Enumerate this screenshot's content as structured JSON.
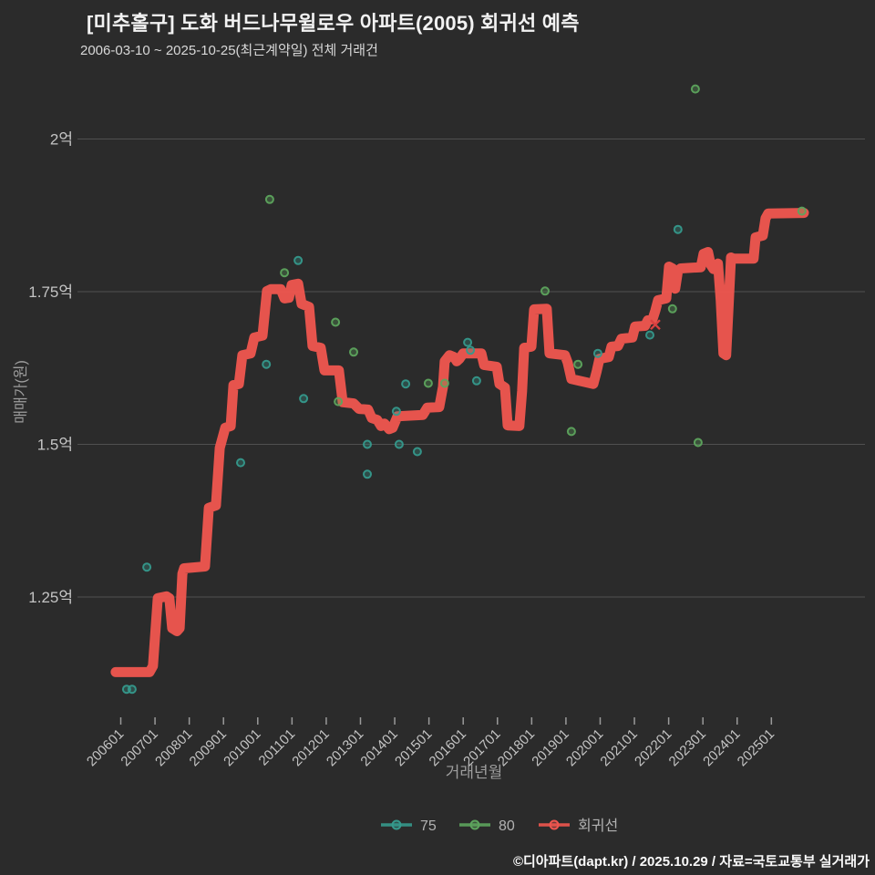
{
  "header": {
    "title": "[미추홀구] 도화 버드나무윌로우 아파트(2005) 회귀선 예측",
    "subtitle": "2006-03-10 ~ 2025-10-25(최근계약일) 전체 거래건"
  },
  "footer": {
    "credit": "©디아파트(dapt.kr) / 2025.10.29 / 자료=국토교통부 실거래가"
  },
  "colors": {
    "background": "#2b2b2b",
    "grid": "#505050",
    "tick_mark": "#9a9a9a",
    "tick_label": "#c4c4c4",
    "axis_title": "#9e9e9e",
    "legend_label": "#b2b2b2",
    "red": "#f0564f",
    "teal": "#35998c",
    "green": "#5da45d",
    "marker_x_red": "#d94040"
  },
  "legend": {
    "items": [
      {
        "label": "75",
        "color_key": "teal"
      },
      {
        "label": "80",
        "color_key": "green"
      },
      {
        "label": "회귀선",
        "color_key": "red"
      }
    ]
  },
  "chart_data": {
    "type": "line+scatter",
    "title": "[미추홀구] 도화 버드나무윌로우 아파트(2005) 회귀선 예측",
    "xlabel": "거래년월",
    "ylabel": "매매가(원)",
    "x_axis": {
      "ticks": [
        "200601",
        "200701",
        "200801",
        "200901",
        "201001",
        "201101",
        "201201",
        "201301",
        "201401",
        "201501",
        "201601",
        "201701",
        "201801",
        "201901",
        "202001",
        "202101",
        "202201",
        "202301",
        "202401",
        "202501"
      ],
      "unit": "year-month",
      "grid": false
    },
    "y_axis": {
      "ticks": [
        {
          "label": "2억",
          "value": 2.0
        },
        {
          "label": "1.75억",
          "value": 1.75
        },
        {
          "label": "1.5억",
          "value": 1.5
        },
        {
          "label": "1.25억",
          "value": 1.25
        }
      ],
      "unit": "억원",
      "grid": true,
      "approx_range": [
        1.05,
        2.12
      ]
    },
    "series": [
      {
        "name": "75",
        "kind": "scatter",
        "color_key": "teal",
        "points": [
          [
            2006.17,
            1.099
          ],
          [
            2006.33,
            1.099
          ],
          [
            2006.76,
            1.299
          ],
          [
            2009.5,
            1.47
          ],
          [
            2010.25,
            1.631
          ],
          [
            2011.18,
            1.801
          ],
          [
            2011.34,
            1.575
          ],
          [
            2013.2,
            1.5
          ],
          [
            2013.2,
            1.451
          ],
          [
            2014.05,
            1.554
          ],
          [
            2014.13,
            1.5
          ],
          [
            2014.32,
            1.599
          ],
          [
            2014.66,
            1.488
          ],
          [
            2016.13,
            1.667
          ],
          [
            2016.21,
            1.654
          ],
          [
            2016.39,
            1.604
          ],
          [
            2019.93,
            1.649
          ],
          [
            2021.45,
            1.679
          ],
          [
            2022.27,
            1.852
          ]
        ]
      },
      {
        "name": "80",
        "kind": "scatter",
        "color_key": "green",
        "points": [
          [
            2010.35,
            1.901
          ],
          [
            2010.78,
            1.781
          ],
          [
            2012.27,
            1.7
          ],
          [
            2012.35,
            1.57
          ],
          [
            2012.8,
            1.651
          ],
          [
            2014.98,
            1.6
          ],
          [
            2015.46,
            1.6
          ],
          [
            2018.39,
            1.751
          ],
          [
            2019.16,
            1.521
          ],
          [
            2019.35,
            1.631
          ],
          [
            2022.11,
            1.722
          ],
          [
            2022.78,
            2.082
          ],
          [
            2022.86,
            1.503
          ],
          [
            2025.89,
            1.882
          ]
        ]
      },
      {
        "name": "회귀선",
        "kind": "line",
        "color_key": "red",
        "points": [
          [
            2005.85,
            1.127
          ],
          [
            2006.84,
            1.127
          ],
          [
            2006.94,
            1.137
          ],
          [
            2007.08,
            1.248
          ],
          [
            2007.34,
            1.251
          ],
          [
            2007.42,
            1.248
          ],
          [
            2007.5,
            1.199
          ],
          [
            2007.64,
            1.194
          ],
          [
            2007.72,
            1.199
          ],
          [
            2007.8,
            1.288
          ],
          [
            2007.85,
            1.297
          ],
          [
            2008.46,
            1.3
          ],
          [
            2008.57,
            1.396
          ],
          [
            2008.78,
            1.4
          ],
          [
            2008.89,
            1.494
          ],
          [
            2009.05,
            1.527
          ],
          [
            2009.21,
            1.53
          ],
          [
            2009.29,
            1.597
          ],
          [
            2009.45,
            1.599
          ],
          [
            2009.55,
            1.646
          ],
          [
            2009.79,
            1.649
          ],
          [
            2009.9,
            1.675
          ],
          [
            2010.14,
            1.678
          ],
          [
            2010.27,
            1.751
          ],
          [
            2010.38,
            1.754
          ],
          [
            2010.67,
            1.754
          ],
          [
            2010.78,
            1.739
          ],
          [
            2010.91,
            1.74
          ],
          [
            2010.99,
            1.761
          ],
          [
            2011.18,
            1.763
          ],
          [
            2011.28,
            1.73
          ],
          [
            2011.5,
            1.725
          ],
          [
            2011.6,
            1.661
          ],
          [
            2011.84,
            1.658
          ],
          [
            2011.95,
            1.621
          ],
          [
            2012.37,
            1.621
          ],
          [
            2012.48,
            1.569
          ],
          [
            2012.8,
            1.567
          ],
          [
            2012.96,
            1.558
          ],
          [
            2013.22,
            1.557
          ],
          [
            2013.33,
            1.543
          ],
          [
            2013.49,
            1.54
          ],
          [
            2013.6,
            1.53
          ],
          [
            2013.7,
            1.534
          ],
          [
            2013.84,
            1.525
          ],
          [
            2013.94,
            1.527
          ],
          [
            2014.08,
            1.546
          ],
          [
            2014.82,
            1.548
          ],
          [
            2014.95,
            1.56
          ],
          [
            2015.3,
            1.561
          ],
          [
            2015.41,
            1.594
          ],
          [
            2015.46,
            1.636
          ],
          [
            2015.6,
            1.646
          ],
          [
            2015.73,
            1.643
          ],
          [
            2015.81,
            1.636
          ],
          [
            2015.89,
            1.64
          ],
          [
            2016.0,
            1.649
          ],
          [
            2016.53,
            1.649
          ],
          [
            2016.61,
            1.63
          ],
          [
            2016.98,
            1.627
          ],
          [
            2017.06,
            1.599
          ],
          [
            2017.22,
            1.593
          ],
          [
            2017.3,
            1.531
          ],
          [
            2017.64,
            1.53
          ],
          [
            2017.72,
            1.587
          ],
          [
            2017.78,
            1.658
          ],
          [
            2017.99,
            1.66
          ],
          [
            2018.07,
            1.721
          ],
          [
            2018.44,
            1.722
          ],
          [
            2018.52,
            1.649
          ],
          [
            2018.97,
            1.646
          ],
          [
            2019.05,
            1.634
          ],
          [
            2019.16,
            1.607
          ],
          [
            2019.8,
            1.599
          ],
          [
            2019.9,
            1.62
          ],
          [
            2019.98,
            1.64
          ],
          [
            2020.25,
            1.643
          ],
          [
            2020.33,
            1.66
          ],
          [
            2020.52,
            1.661
          ],
          [
            2020.62,
            1.673
          ],
          [
            2020.94,
            1.675
          ],
          [
            2021.02,
            1.693
          ],
          [
            2021.31,
            1.694
          ],
          [
            2021.39,
            1.703
          ],
          [
            2021.53,
            1.705
          ],
          [
            2021.61,
            1.719
          ],
          [
            2021.69,
            1.736
          ],
          [
            2021.93,
            1.739
          ],
          [
            2022.01,
            1.791
          ],
          [
            2022.11,
            1.788
          ],
          [
            2022.19,
            1.755
          ],
          [
            2022.27,
            1.784
          ],
          [
            2022.35,
            1.788
          ],
          [
            2022.94,
            1.79
          ],
          [
            2023.02,
            1.812
          ],
          [
            2023.15,
            1.815
          ],
          [
            2023.23,
            1.794
          ],
          [
            2023.31,
            1.787
          ],
          [
            2023.39,
            1.787
          ],
          [
            2023.44,
            1.796
          ],
          [
            2023.52,
            1.736
          ],
          [
            2023.6,
            1.649
          ],
          [
            2023.68,
            1.646
          ],
          [
            2023.76,
            1.736
          ],
          [
            2023.82,
            1.806
          ],
          [
            2023.9,
            1.804
          ],
          [
            2024.48,
            1.804
          ],
          [
            2024.54,
            1.839
          ],
          [
            2024.75,
            1.842
          ],
          [
            2024.83,
            1.87
          ],
          [
            2024.91,
            1.878
          ],
          [
            2025.95,
            1.879
          ]
        ]
      }
    ],
    "annotations": [
      {
        "shape": "x",
        "color_key": "marker_x_red",
        "point": [
          2021.61,
          1.696
        ]
      }
    ],
    "legend_position": "bottom-center"
  }
}
